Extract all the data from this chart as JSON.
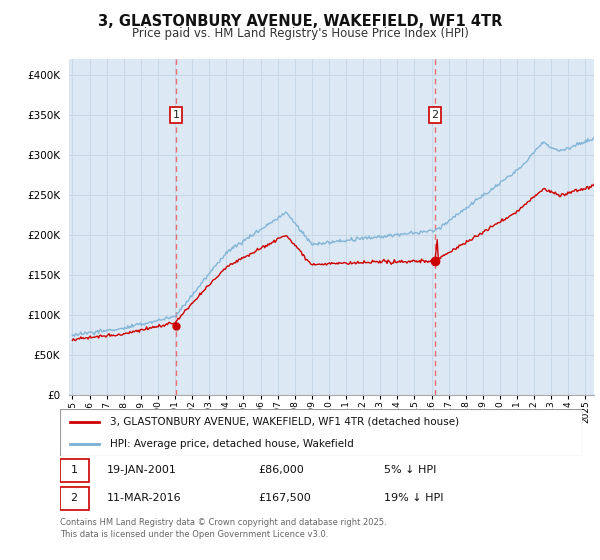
{
  "title": "3, GLASTONBURY AVENUE, WAKEFIELD, WF1 4TR",
  "subtitle": "Price paid vs. HM Land Registry's House Price Index (HPI)",
  "legend_line1": "3, GLASTONBURY AVENUE, WAKEFIELD, WF1 4TR (detached house)",
  "legend_line2": "HPI: Average price, detached house, Wakefield",
  "annotation1_date": "19-JAN-2001",
  "annotation1_price": "£86,000",
  "annotation1_hpi": "5% ↓ HPI",
  "annotation1_year": 2001.05,
  "annotation1_sale_price": 86000,
  "annotation2_date": "11-MAR-2016",
  "annotation2_price": "£167,500",
  "annotation2_hpi": "19% ↓ HPI",
  "annotation2_year": 2016.2,
  "annotation2_sale_price": 167500,
  "red_line_color": "#cc0000",
  "blue_line_color": "#7ab0d4",
  "dashed_line_color": "#e87070",
  "background_color": "#ffffff",
  "plot_bg_color": "#dce9f5",
  "grid_color": "#c8d8e8",
  "footer": "Contains HM Land Registry data © Crown copyright and database right 2025.\nThis data is licensed under the Open Government Licence v3.0.",
  "ylim": [
    0,
    420000
  ],
  "yticks": [
    0,
    50000,
    100000,
    150000,
    200000,
    250000,
    300000,
    350000,
    400000
  ],
  "xmin": 1994.8,
  "xmax": 2025.5
}
